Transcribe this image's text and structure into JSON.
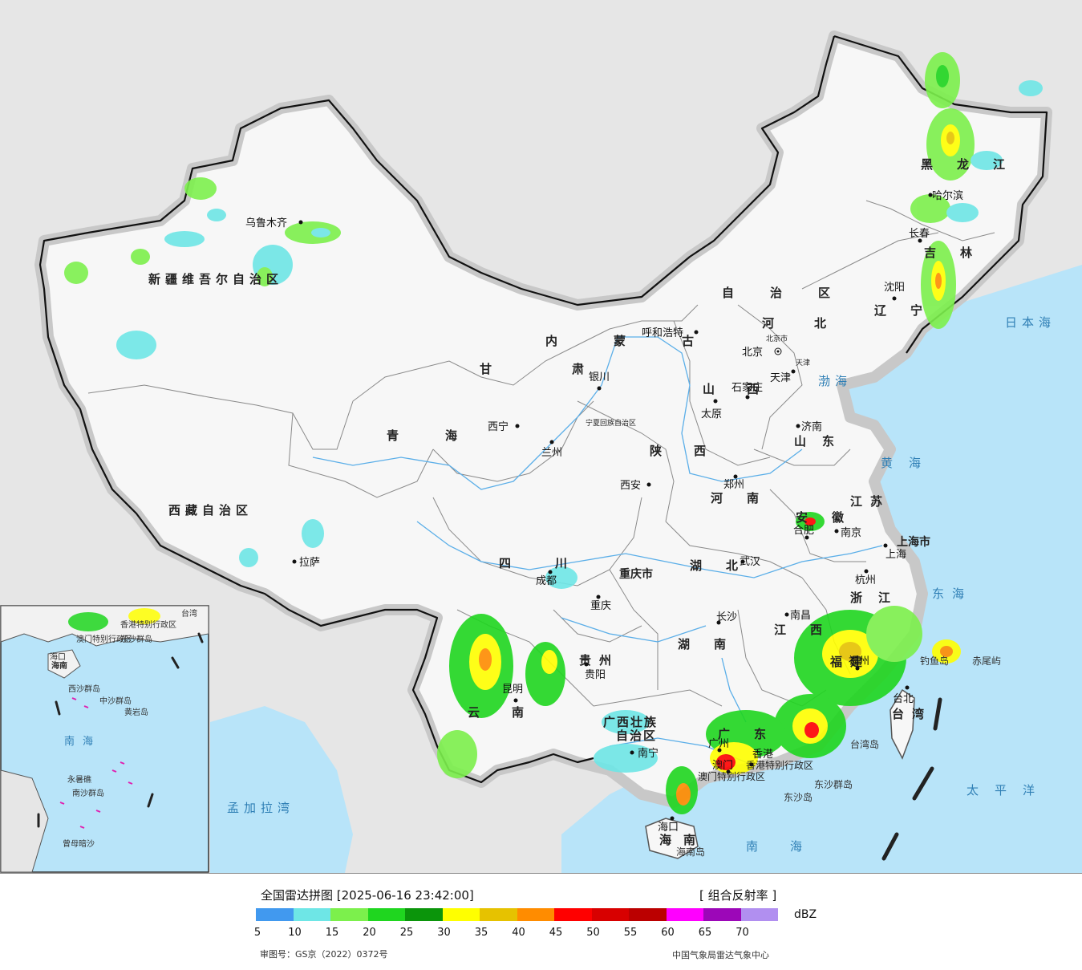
{
  "colors": {
    "sea": "#b8e4f9",
    "land_outside": "#e6e6e6",
    "land_china": "#f7f7f7",
    "border": "#111111",
    "province_border": "#8a8a8a",
    "river": "#5aaee8",
    "region_label": "#222222",
    "sea_label": "#2f7fb5"
  },
  "map": {
    "regions": [
      "新疆维吾尔自治区",
      "西藏自治区",
      "青海",
      "甘肃",
      "内蒙古",
      "自治区",
      "黑龙江",
      "吉林",
      "辽宁",
      "河北",
      "山西",
      "山东",
      "河南",
      "陕西",
      "四川",
      "重庆市",
      "湖北",
      "湖南",
      "贵州",
      "云南",
      "广西壮族",
      "自治区",
      "广东",
      "江西",
      "福建",
      "浙江",
      "安徽",
      "江苏",
      "上海市",
      "海南",
      "台湾",
      "宁夏回族自治区",
      "香港特别行政区",
      "澳门特别行政区",
      "北京市",
      "天津"
    ],
    "cities": [
      "乌鲁木齐",
      "拉萨",
      "西宁",
      "兰州",
      "银川",
      "呼和浩特",
      "北京",
      "天津",
      "石家庄",
      "太原",
      "济南",
      "郑州",
      "西安",
      "成都",
      "重庆",
      "武汉",
      "长沙",
      "南昌",
      "合肥",
      "南京",
      "上海",
      "杭州",
      "福州",
      "贵阳",
      "昆明",
      "南宁",
      "广州",
      "香港",
      "澳门",
      "海口",
      "台北",
      "哈尔滨",
      "长春",
      "沈阳"
    ],
    "seas": [
      "日本海",
      "渤海",
      "黄海",
      "东海",
      "太平洋",
      "南海",
      "孟加拉湾"
    ],
    "islands": [
      "钓鱼岛",
      "赤尾屿",
      "台湾岛",
      "东沙群岛",
      "东沙岛",
      "海南岛"
    ],
    "inset": [
      "南海",
      "东沙群岛",
      "西沙群岛",
      "中沙群岛",
      "南沙群岛",
      "黄岩岛",
      "永暑礁",
      "曾母暗沙",
      "海南",
      "海口",
      "台湾",
      "香港特别行政区",
      "澳门特别行政区"
    ]
  },
  "footer": {
    "title": "全国雷达拼图 [2025-06-16 23:42:00]",
    "product": "[ 组合反射率 ]",
    "unit": "dBZ",
    "review_number": "审图号：GS京（2022）0372号",
    "organization": "中国气象局雷达气象中心",
    "legend": [
      {
        "value": "5",
        "color": "#4199ef"
      },
      {
        "value": "10",
        "color": "#6ee6e6"
      },
      {
        "value": "15",
        "color": "#7cf04c"
      },
      {
        "value": "20",
        "color": "#1fd61f"
      },
      {
        "value": "25",
        "color": "#0b950b"
      },
      {
        "value": "30",
        "color": "#ffff00"
      },
      {
        "value": "35",
        "color": "#e6c200"
      },
      {
        "value": "40",
        "color": "#ff8c00"
      },
      {
        "value": "45",
        "color": "#ff0000"
      },
      {
        "value": "50",
        "color": "#d80000"
      },
      {
        "value": "55",
        "color": "#bb0000"
      },
      {
        "value": "60",
        "color": "#ff00ff"
      },
      {
        "value": "65",
        "color": "#9c07b8"
      },
      {
        "value": "70",
        "color": "#b18ff0"
      }
    ]
  }
}
